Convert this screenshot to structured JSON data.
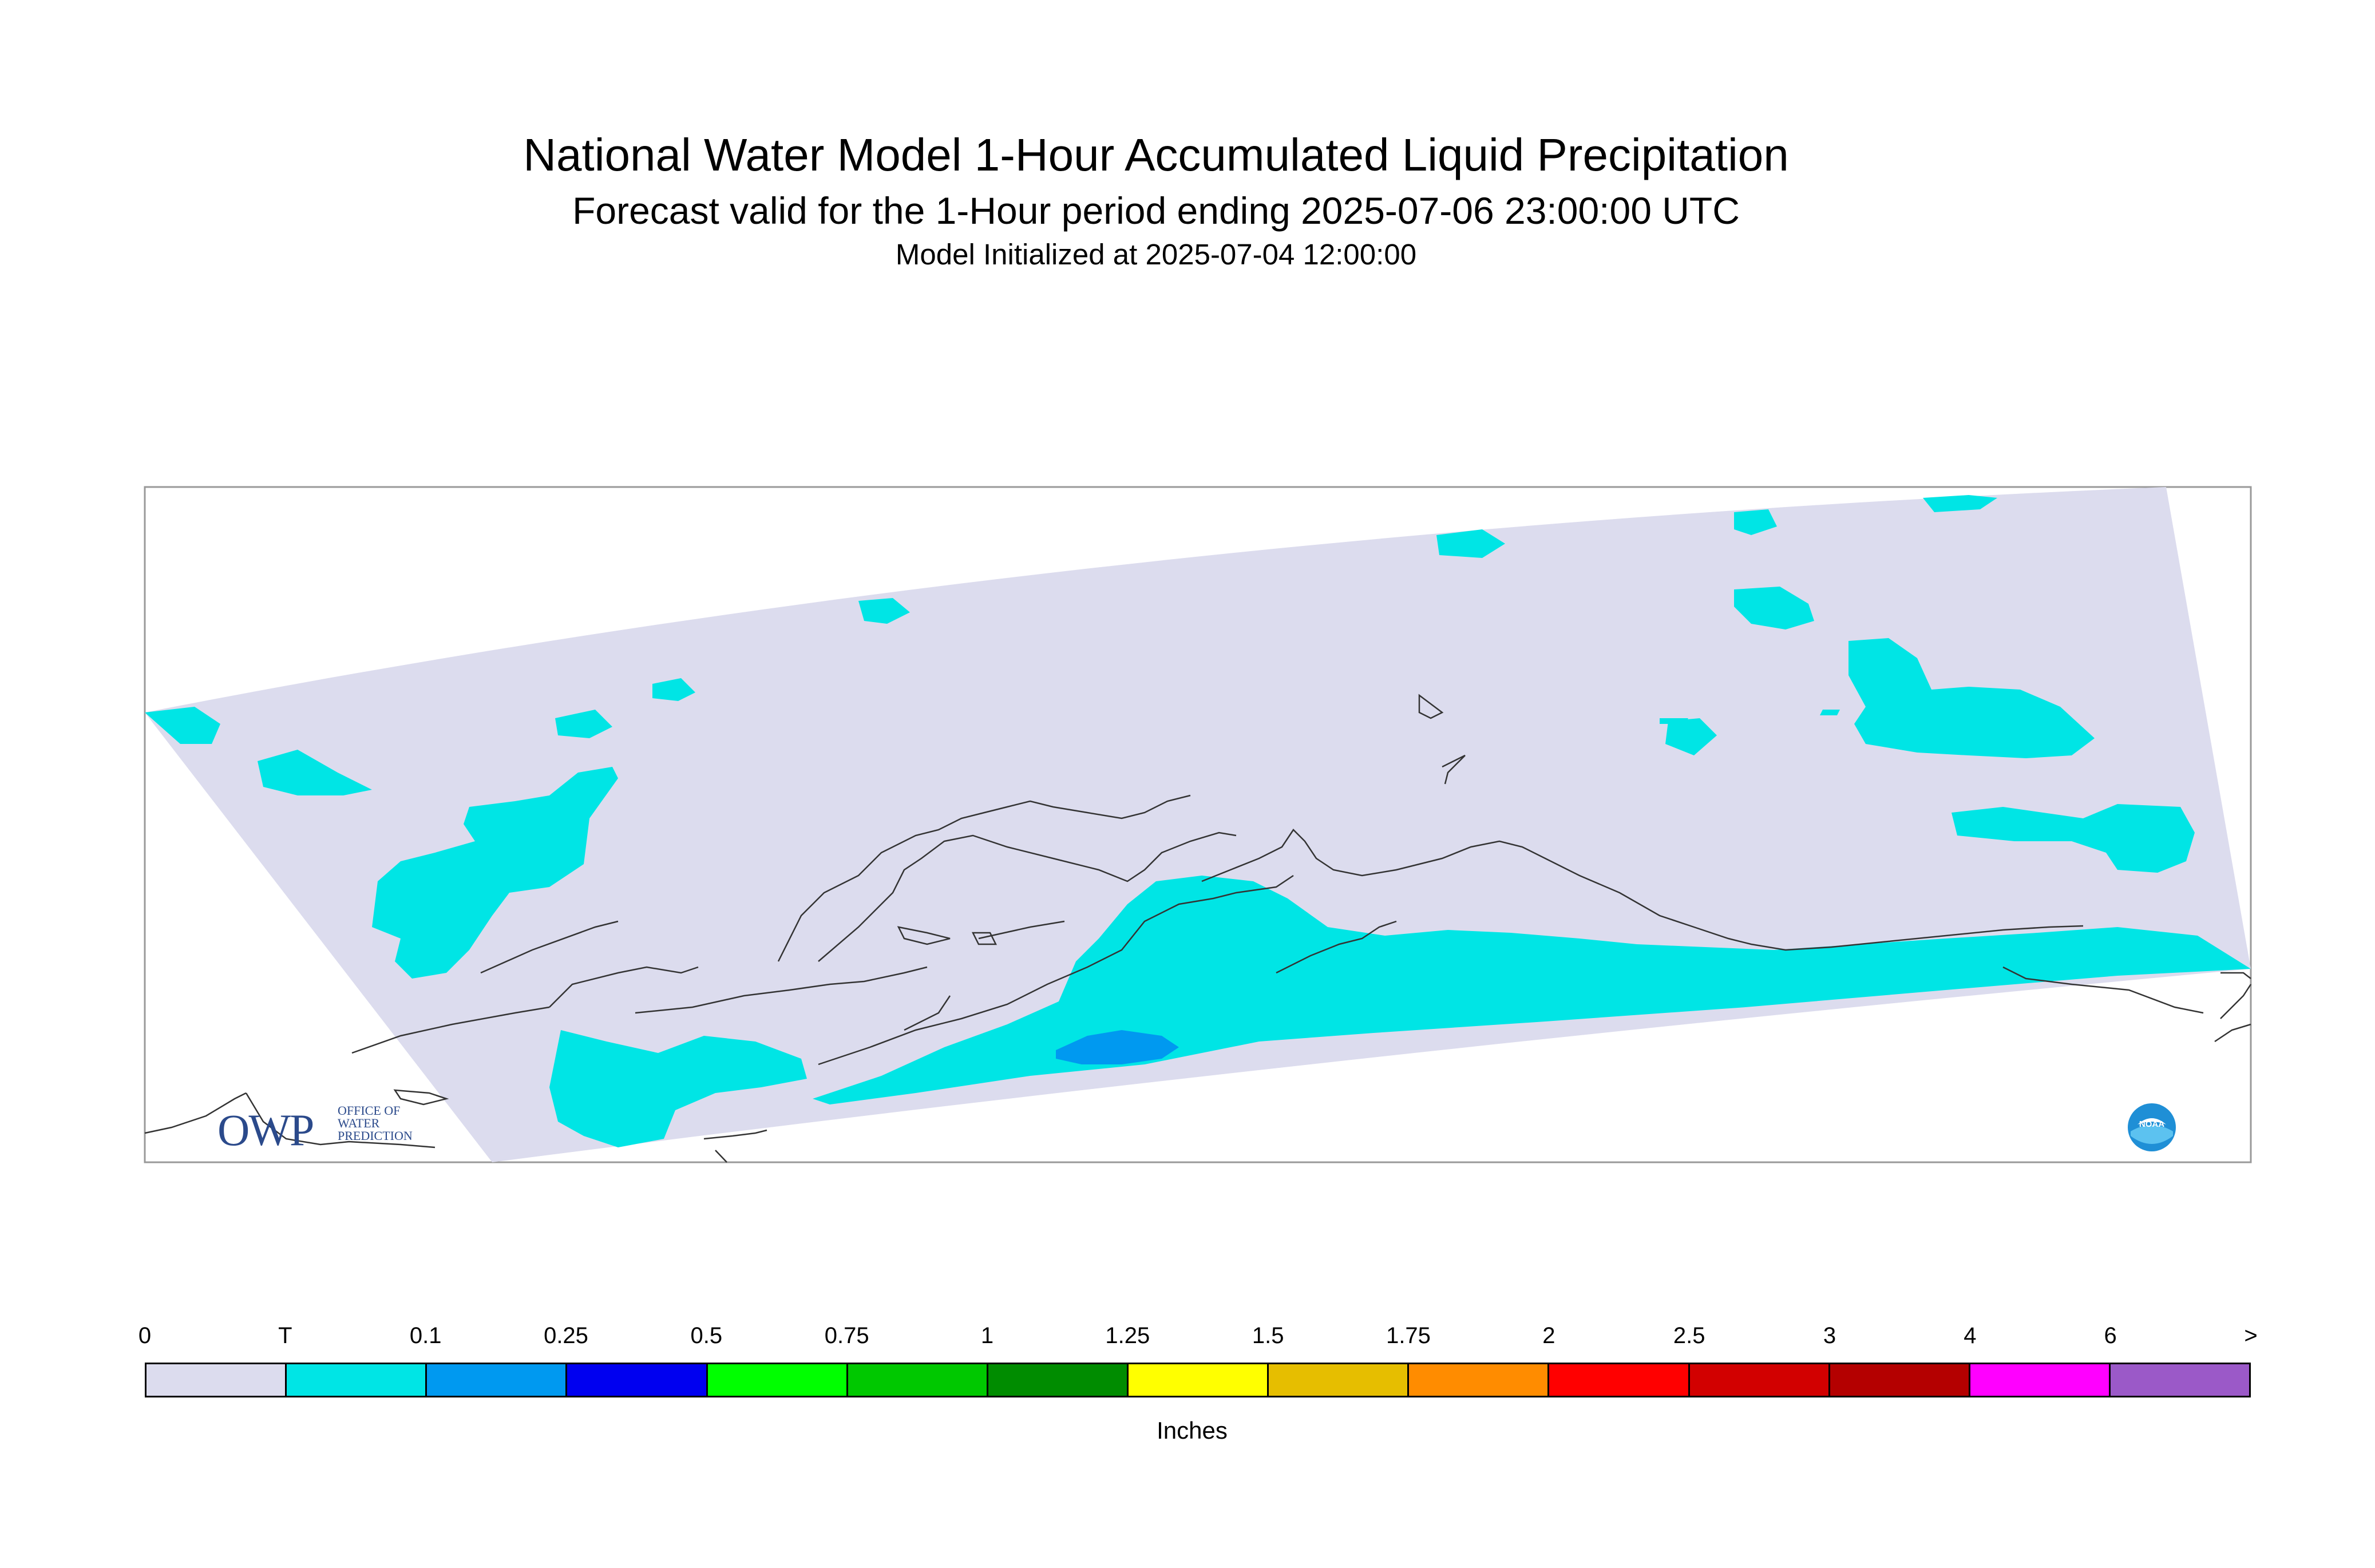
{
  "header": {
    "title": "National Water Model 1-Hour Accumulated Liquid Precipitation",
    "subtitle": "Forecast valid for the 1-Hour period ending 2025-07-06 23:00:00 UTC",
    "init": "Model Initialized at 2025-07-04 12:00:00"
  },
  "logos": {
    "owp_main": "OWP",
    "owp_lines": [
      "OFFICE OF",
      "WATER",
      "PREDICTION"
    ],
    "noaa": "NOAA"
  },
  "legend": {
    "unit": "Inches",
    "ticks": [
      "0",
      "T",
      "0.1",
      "0.25",
      "0.5",
      "0.75",
      "1",
      "1.25",
      "1.5",
      "1.75",
      "2",
      "2.5",
      "3",
      "4",
      "6",
      ">"
    ],
    "colors": [
      "#dcdcee",
      "#00e5e5",
      "#0099f0",
      "#0000f0",
      "#00ff00",
      "#00c800",
      "#008c00",
      "#ffff00",
      "#e6be00",
      "#ff8c00",
      "#ff0000",
      "#d20000",
      "#b40000",
      "#ff00ff",
      "#9b59c8"
    ]
  },
  "map": {
    "domain_color": "#dcdcee",
    "trace_color": "#00e5e5",
    "light_color": "#0099f0",
    "coast_color": "#333333"
  }
}
